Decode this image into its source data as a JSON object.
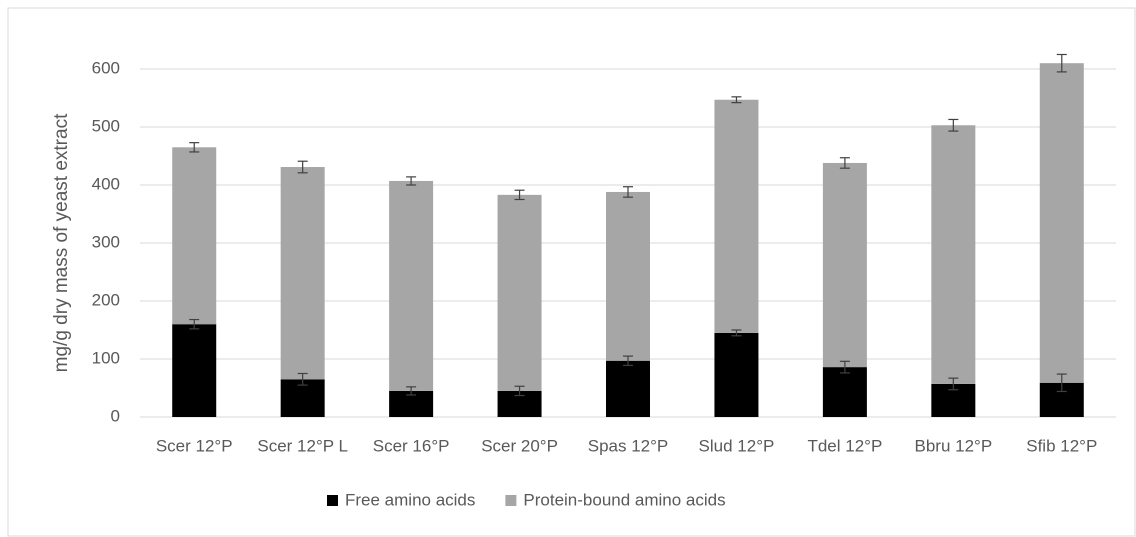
{
  "chart_data": {
    "type": "stacked-bar",
    "y_label": "mg/g dry mass of yeast extract",
    "categories": [
      "Scer 12°P",
      "Scer 12°P L",
      "Scer 16°P",
      "Scer 20°P",
      "Spas 12°P",
      "Slud 12°P",
      "Tdel 12°P",
      "Bbru 12°P",
      "Sfib 12°P"
    ],
    "series": [
      {
        "name": "Free amino acids",
        "color": "#000000",
        "values": [
          160,
          65,
          45,
          45,
          97,
          145,
          86,
          57,
          59
        ],
        "errors": [
          8,
          10,
          7,
          8,
          8,
          5,
          10,
          10,
          15
        ]
      },
      {
        "name": "Protein-bound amino acids",
        "color": "#a6a6a6",
        "values": [
          305,
          366,
          362,
          338,
          291,
          402,
          352,
          446,
          551
        ],
        "errors": [
          8,
          10,
          7,
          8,
          9,
          5,
          9,
          10,
          15
        ]
      }
    ],
    "ylim": [
      0,
      600
    ],
    "yticks": [
      0,
      100,
      200,
      300,
      400,
      500,
      600
    ],
    "grid": true,
    "legend": "bottom"
  }
}
